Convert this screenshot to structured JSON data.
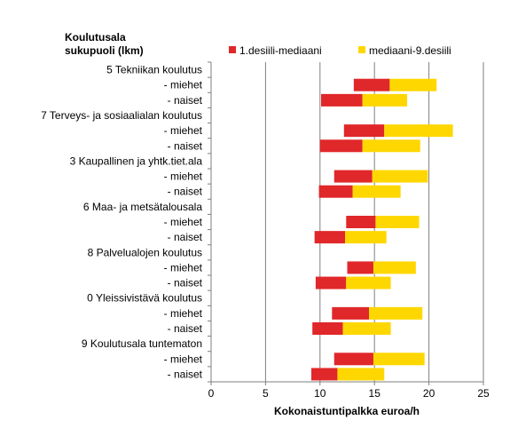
{
  "chart_data": {
    "type": "bar",
    "orientation": "horizontal",
    "stacked": true,
    "title": "",
    "ylabel_lines": [
      "Koulutusala",
      "sukupuoli (lkm)"
    ],
    "xlabel": "Kokonaistuntipalkka  euroa/h",
    "xlim": [
      0,
      25
    ],
    "xticks": [
      0,
      5,
      10,
      15,
      20,
      25
    ],
    "grid": "vertical",
    "legend_position": "top-right",
    "series": [
      {
        "name": "1.desiili-mediaani",
        "color": "#e0272a"
      },
      {
        "name": "mediaani-9.desiili",
        "color": "#ffd700"
      }
    ],
    "categories": [
      "5 Tekniikan koulutus",
      "- miehet",
      "- naiset",
      "7 Terveys- ja sosiaalialan koulutus",
      "- miehet",
      "- naiset",
      "3 Kaupallinen ja yhtk.tiet.ala",
      "- miehet",
      "- naiset",
      "6 Maa- ja metsätalousala",
      "- miehet",
      "- naiset",
      "8 Palvelualojen koulutus",
      "- miehet",
      "- naiset",
      "0 Yleissivistävä koulutus",
      "- miehet",
      "- naiset",
      "9 Koulutusala tuntematon",
      "- miehet",
      "- naiset"
    ],
    "ranges": [
      null,
      [
        13.1,
        16.4,
        20.7
      ],
      [
        10.1,
        13.9,
        18.0
      ],
      null,
      [
        12.2,
        15.9,
        22.2
      ],
      [
        10.0,
        13.9,
        19.2
      ],
      null,
      [
        11.3,
        14.8,
        19.9
      ],
      [
        9.9,
        13.0,
        17.4
      ],
      null,
      [
        12.4,
        15.1,
        19.1
      ],
      [
        9.5,
        12.3,
        16.1
      ],
      null,
      [
        12.5,
        14.9,
        18.8
      ],
      [
        9.6,
        12.4,
        16.5
      ],
      null,
      [
        11.1,
        14.5,
        19.4
      ],
      [
        9.3,
        12.1,
        16.5
      ],
      null,
      [
        11.3,
        14.9,
        19.6
      ],
      [
        9.2,
        11.6,
        15.9
      ]
    ]
  }
}
